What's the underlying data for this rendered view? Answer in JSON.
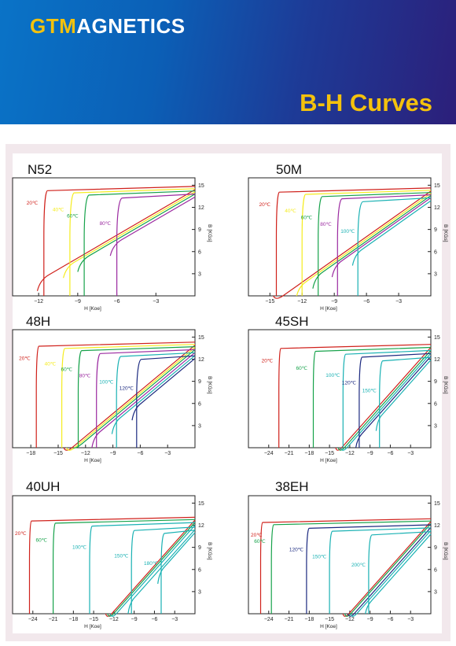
{
  "brand": {
    "part1": "GTM",
    "part2": "AGNETICS"
  },
  "banner_title": "B-H Curves",
  "colors": {
    "20": "#d0211b",
    "40": "#f5ec1e",
    "60": "#16a24a",
    "80": "#9b2aa0",
    "100": "#19b1b3",
    "120": "#1c2a80",
    "150": "#19b1b3",
    "180": "#19b1b3",
    "200": "#19b1b3"
  },
  "chart_data": [
    {
      "type": "line",
      "grade": "N52",
      "xlabel": "H [Koe]",
      "ylabel": "B [KGs]",
      "xlim": [
        -14,
        0
      ],
      "ylim": [
        0,
        16
      ],
      "xticks": [
        -12,
        -9,
        -6,
        -3
      ],
      "yticks": [
        3,
        6,
        9,
        12,
        15
      ],
      "series": [
        {
          "name": "20℃",
          "hcj": -11.6,
          "br": 14.4
        },
        {
          "name": "40℃",
          "hcj": -9.6,
          "br": 14.1
        },
        {
          "name": "60℃",
          "hcj": -8.5,
          "br": 13.8
        },
        {
          "name": "80℃",
          "hcj": -6.0,
          "br": 13.4
        }
      ]
    },
    {
      "type": "line",
      "grade": "50M",
      "xlabel": "H [Koe]",
      "ylabel": "B [KGs]",
      "xlim": [
        -17,
        0
      ],
      "ylim": [
        0,
        16
      ],
      "xticks": [
        -15,
        -12,
        -9,
        -6,
        -3
      ],
      "yticks": [
        3,
        6,
        9,
        12,
        15
      ],
      "series": [
        {
          "name": "20℃",
          "hcj": -14.4,
          "br": 14.2
        },
        {
          "name": "40℃",
          "hcj": -12.0,
          "br": 13.9
        },
        {
          "name": "60℃",
          "hcj": -10.5,
          "br": 13.6
        },
        {
          "name": "80℃",
          "hcj": -8.7,
          "br": 13.3
        },
        {
          "name": "100℃",
          "hcj": -6.8,
          "br": 12.9
        }
      ]
    },
    {
      "type": "line",
      "grade": "48H",
      "xlabel": "H [Koe]",
      "ylabel": "B [KGs]",
      "xlim": [
        -20,
        0
      ],
      "ylim": [
        0,
        16
      ],
      "xticks": [
        -18,
        -15,
        -12,
        -9,
        -6,
        -3
      ],
      "yticks": [
        3,
        6,
        9,
        12,
        15
      ],
      "series": [
        {
          "name": "20℃",
          "hcj": -17.4,
          "br": 13.9
        },
        {
          "name": "40℃",
          "hcj": -14.6,
          "br": 13.6
        },
        {
          "name": "60℃",
          "hcj": -12.8,
          "br": 13.3
        },
        {
          "name": "80℃",
          "hcj": -10.8,
          "br": 12.9
        },
        {
          "name": "100℃",
          "hcj": -8.6,
          "br": 12.5
        },
        {
          "name": "120℃",
          "hcj": -6.4,
          "br": 12.1
        }
      ]
    },
    {
      "type": "line",
      "grade": "45SH",
      "xlabel": "H [Koe]",
      "ylabel": "B [KGs]",
      "xlim": [
        -27,
        0
      ],
      "ylim": [
        0,
        16
      ],
      "xticks": [
        -24,
        -21,
        -18,
        -15,
        -12,
        -9,
        -6,
        -3
      ],
      "yticks": [
        3,
        6,
        9,
        12,
        15
      ],
      "series": [
        {
          "name": "20℃",
          "hcj": -22.5,
          "br": 13.6
        },
        {
          "name": "60℃",
          "hcj": -17.4,
          "br": 13.2
        },
        {
          "name": "100℃",
          "hcj": -13.0,
          "br": 12.8
        },
        {
          "name": "120℃",
          "hcj": -10.6,
          "br": 12.4
        },
        {
          "name": "150℃",
          "hcj": -7.6,
          "br": 11.9
        }
      ]
    },
    {
      "type": "line",
      "grade": "40UH",
      "xlabel": "H [Koe]",
      "ylabel": "B [KGs]",
      "xlim": [
        -27,
        0
      ],
      "ylim": [
        0,
        16
      ],
      "xticks": [
        -24,
        -21,
        -18,
        -15,
        -12,
        -9,
        -6,
        -3
      ],
      "yticks": [
        3,
        6,
        9,
        12,
        15
      ],
      "series": [
        {
          "name": "20℃",
          "hcj": -24.5,
          "br": 12.7
        },
        {
          "name": "60℃",
          "hcj": -21.0,
          "br": 12.4
        },
        {
          "name": "100℃",
          "hcj": -15.6,
          "br": 12.0
        },
        {
          "name": "150℃",
          "hcj": -9.4,
          "br": 11.4
        },
        {
          "name": "180℃",
          "hcj": -5.0,
          "br": 11.0
        }
      ]
    },
    {
      "type": "line",
      "grade": "38EH",
      "xlabel": "H [Koe]",
      "ylabel": "B [KGs]",
      "xlim": [
        -27,
        0
      ],
      "ylim": [
        0,
        16
      ],
      "xticks": [
        -24,
        -21,
        -18,
        -15,
        -12,
        -9,
        -6,
        -3
      ],
      "yticks": [
        3,
        6,
        9,
        12,
        15
      ],
      "series": [
        {
          "name": "20℃",
          "hcj": -25.2,
          "br": 12.5
        },
        {
          "name": "60℃",
          "hcj": -23.6,
          "br": 12.2
        },
        {
          "name": "120℃",
          "hcj": -18.4,
          "br": 11.7
        },
        {
          "name": "150℃",
          "hcj": -15.0,
          "br": 11.3
        },
        {
          "name": "200℃",
          "hcj": -9.2,
          "br": 10.8
        }
      ]
    }
  ]
}
